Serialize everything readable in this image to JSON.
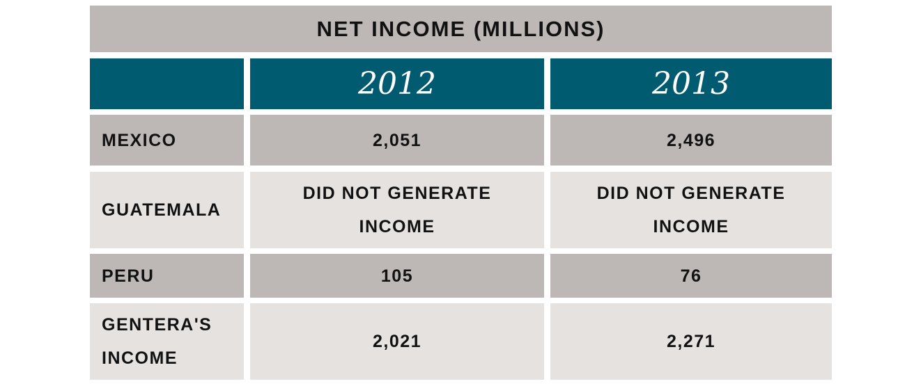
{
  "chart_data": {
    "type": "table",
    "title": "NET INCOME (MILLIONS)",
    "columns": [
      "",
      "2012",
      "2013"
    ],
    "rows": [
      {
        "label": "MEXICO",
        "values": [
          "2,051",
          "2,496"
        ]
      },
      {
        "label": "GUATEMALA",
        "values": [
          "DID NOT GENERATE INCOME",
          "DID NOT GENERATE INCOME"
        ]
      },
      {
        "label": "PERU",
        "values": [
          "105",
          "76"
        ]
      },
      {
        "label": "GENTERA'S INCOME",
        "values": [
          "2,021",
          "2,271"
        ]
      }
    ]
  },
  "colors": {
    "header_bg": "#005a70",
    "dark_row": "#bdb8b5",
    "light_row": "#e5e2e0"
  }
}
